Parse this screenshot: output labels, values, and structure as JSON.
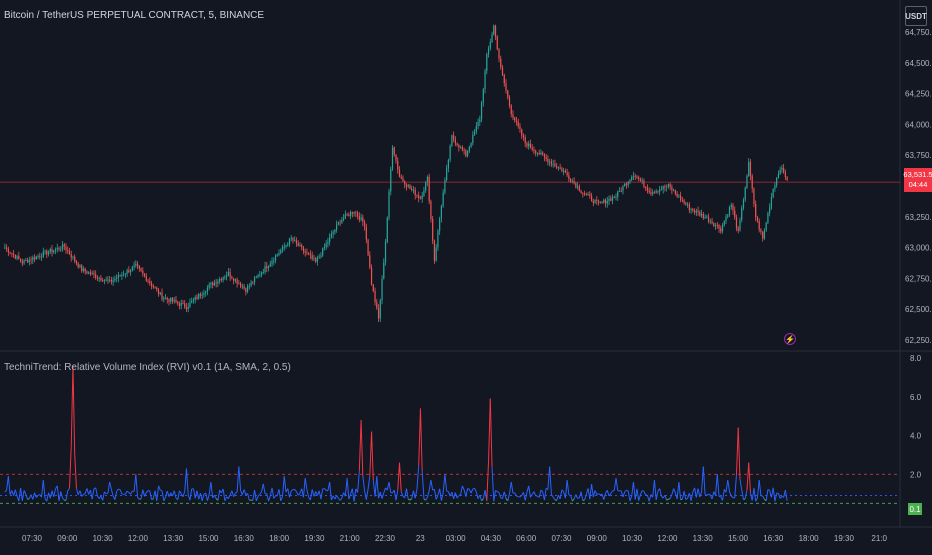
{
  "header": {
    "title": "Bitcoin / TetherUS PERPETUAL CONTRACT, 5, BINANCE",
    "currency": "USDT"
  },
  "price_axis": {
    "ticks": [
      "64,750.0",
      "64,500.0",
      "64,250.0",
      "64,000.0",
      "63,750.0",
      "63,250.0",
      "63,000.0",
      "62,750.0",
      "62,500.0",
      "62,250.0"
    ],
    "tick_values": [
      64750,
      64500,
      64250,
      64000,
      63750,
      63250,
      63000,
      62750,
      62500,
      62250
    ],
    "current_price": "63,531.5",
    "current_price_value": 63531.5,
    "countdown": "04:44"
  },
  "indicator": {
    "title": "TechniTrend: Relative Volume Index (RVI) v0.1 (1A, SMA, 2, 0.5)",
    "ticks": [
      "8.0",
      "6.0",
      "4.0",
      "2.0"
    ],
    "tick_values": [
      8,
      6,
      4,
      2
    ],
    "current_value": "0.1",
    "upper_level": 2.0,
    "middle_level": 0.9,
    "lower_level": 0.5
  },
  "time_axis": {
    "labels": [
      "07:30",
      "09:00",
      "10:30",
      "12:00",
      "13:30",
      "15:00",
      "16:30",
      "18:00",
      "19:30",
      "21:00",
      "22:30",
      "23",
      "03:00",
      "04:30",
      "06:00",
      "07:30",
      "09:00",
      "10:30",
      "12:00",
      "13:30",
      "15:00",
      "16:30",
      "18:00",
      "19:30",
      "21:0"
    ]
  },
  "colors": {
    "background": "#131722",
    "up": "#26a69a",
    "down": "#ef5350",
    "price_line": "#f23645",
    "rvi_blue": "#2962ff",
    "rvi_red": "#f23645",
    "rvi_green": "#4caf50",
    "grid": "#1e222d",
    "text": "#b2b5be"
  },
  "chart_data": {
    "type": "candlestick",
    "price_range": [
      62150,
      64850
    ],
    "anchors": [
      [
        0,
        63000
      ],
      [
        10,
        62880
      ],
      [
        22,
        62950
      ],
      [
        34,
        63010
      ],
      [
        44,
        62820
      ],
      [
        60,
        62720
      ],
      [
        75,
        62850
      ],
      [
        90,
        62600
      ],
      [
        104,
        62520
      ],
      [
        118,
        62700
      ],
      [
        128,
        62790
      ],
      [
        138,
        62660
      ],
      [
        150,
        62850
      ],
      [
        164,
        63070
      ],
      [
        178,
        62880
      ],
      [
        192,
        63220
      ],
      [
        200,
        63300
      ],
      [
        206,
        63190
      ],
      [
        210,
        62710
      ],
      [
        214,
        62420
      ],
      [
        218,
        63050
      ],
      [
        222,
        63830
      ],
      [
        226,
        63580
      ],
      [
        232,
        63480
      ],
      [
        238,
        63400
      ],
      [
        242,
        63560
      ],
      [
        246,
        62900
      ],
      [
        250,
        63350
      ],
      [
        256,
        63900
      ],
      [
        264,
        63750
      ],
      [
        272,
        64050
      ],
      [
        276,
        64550
      ],
      [
        280,
        64800
      ],
      [
        284,
        64450
      ],
      [
        290,
        64100
      ],
      [
        298,
        63850
      ],
      [
        310,
        63720
      ],
      [
        320,
        63620
      ],
      [
        330,
        63460
      ],
      [
        340,
        63350
      ],
      [
        350,
        63420
      ],
      [
        360,
        63600
      ],
      [
        370,
        63450
      ],
      [
        380,
        63500
      ],
      [
        392,
        63320
      ],
      [
        402,
        63240
      ],
      [
        410,
        63150
      ],
      [
        416,
        63350
      ],
      [
        420,
        63120
      ],
      [
        426,
        63680
      ],
      [
        430,
        63250
      ],
      [
        434,
        63070
      ],
      [
        440,
        63480
      ],
      [
        444,
        63650
      ],
      [
        448,
        63560
      ]
    ],
    "rvi_spikes": [
      [
        2,
        1.9,
        "blue"
      ],
      [
        6,
        1.2,
        "blue"
      ],
      [
        22,
        1.7,
        "blue"
      ],
      [
        30,
        1.4,
        "blue"
      ],
      [
        39,
        7.6,
        "red"
      ],
      [
        52,
        1.3,
        "blue"
      ],
      [
        60,
        1.6,
        "blue"
      ],
      [
        75,
        2.0,
        "blue"
      ],
      [
        88,
        1.4,
        "blue"
      ],
      [
        104,
        2.3,
        "blue"
      ],
      [
        118,
        1.6,
        "blue"
      ],
      [
        134,
        2.4,
        "blue"
      ],
      [
        148,
        1.5,
        "blue"
      ],
      [
        160,
        1.9,
        "blue"
      ],
      [
        172,
        1.8,
        "blue"
      ],
      [
        186,
        1.6,
        "blue"
      ],
      [
        196,
        1.8,
        "blue"
      ],
      [
        204,
        4.8,
        "blue"
      ],
      [
        210,
        4.2,
        "red"
      ],
      [
        213,
        1.9,
        "blue"
      ],
      [
        220,
        1.6,
        "blue"
      ],
      [
        226,
        2.6,
        "blue"
      ],
      [
        238,
        5.4,
        "red"
      ],
      [
        244,
        1.7,
        "blue"
      ],
      [
        252,
        2.0,
        "blue"
      ],
      [
        262,
        1.4,
        "blue"
      ],
      [
        278,
        5.9,
        "red"
      ],
      [
        290,
        1.6,
        "blue"
      ],
      [
        300,
        1.4,
        "blue"
      ],
      [
        312,
        2.4,
        "blue"
      ],
      [
        322,
        1.7,
        "blue"
      ],
      [
        336,
        1.5,
        "blue"
      ],
      [
        350,
        1.8,
        "blue"
      ],
      [
        360,
        1.6,
        "blue"
      ],
      [
        372,
        1.7,
        "blue"
      ],
      [
        386,
        1.6,
        "blue"
      ],
      [
        400,
        2.4,
        "blue"
      ],
      [
        408,
        2.0,
        "blue"
      ],
      [
        414,
        1.7,
        "blue"
      ],
      [
        420,
        4.4,
        "blue"
      ],
      [
        426,
        2.6,
        "red"
      ],
      [
        432,
        1.7,
        "blue"
      ],
      [
        440,
        1.3,
        "blue"
      ],
      [
        446,
        0.8,
        "blue"
      ]
    ]
  }
}
